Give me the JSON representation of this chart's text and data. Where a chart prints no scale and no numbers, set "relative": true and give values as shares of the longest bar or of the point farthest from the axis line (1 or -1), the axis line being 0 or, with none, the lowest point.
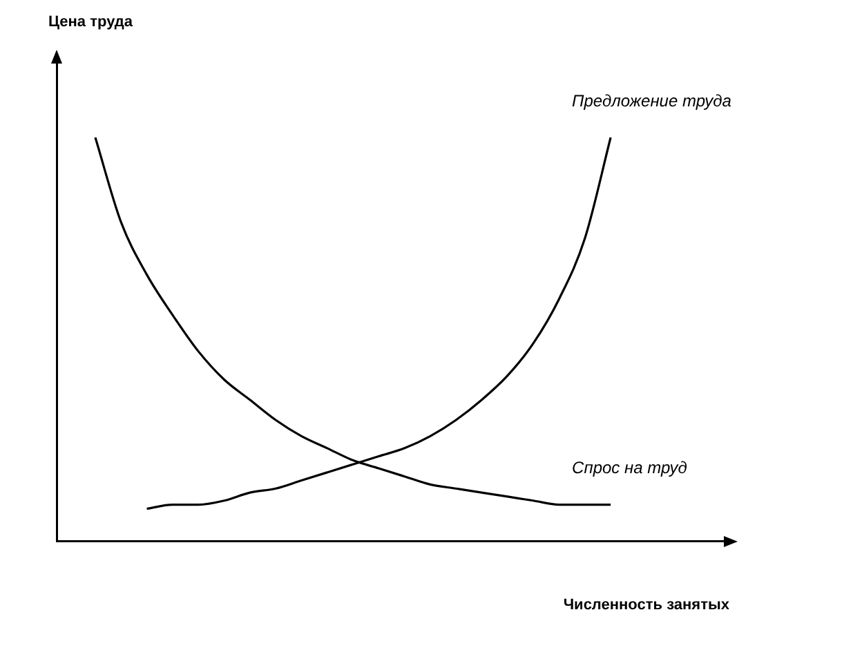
{
  "chart_data": {
    "type": "line",
    "relative": true,
    "xlabel": "Численность занятых",
    "annotations": [
      "Цена труда"
    ],
    "categories": [
      null,
      null,
      null,
      null,
      null,
      null,
      null,
      null,
      null,
      null,
      null,
      null,
      null,
      null,
      null,
      null,
      null,
      null,
      null,
      null,
      null,
      null,
      null,
      null,
      null,
      null
    ],
    "series": [
      {
        "name": "Предложение труда",
        "color": "#000000",
        "values": [
          null,
          null,
          null,
          0.08,
          0.09,
          0.09,
          0.1,
          0.12,
          0.13,
          0.15,
          0.17,
          0.19,
          0.21,
          0.23,
          0.26,
          0.3,
          0.35,
          0.41,
          0.49,
          0.6,
          0.75,
          1.0,
          null,
          null,
          null,
          null
        ]
      },
      {
        "name": "Спрос на труд",
        "color": "#000000",
        "values": [
          null,
          1.0,
          0.79,
          0.66,
          0.56,
          0.47,
          0.4,
          0.35,
          0.3,
          0.26,
          0.23,
          0.2,
          0.18,
          0.16,
          0.14,
          0.13,
          0.12,
          0.11,
          0.1,
          0.09,
          0.09,
          0.09,
          null,
          null,
          null,
          null
        ]
      }
    ],
    "legend": false,
    "grid": false,
    "marker": "none",
    "line_style": "solid"
  }
}
